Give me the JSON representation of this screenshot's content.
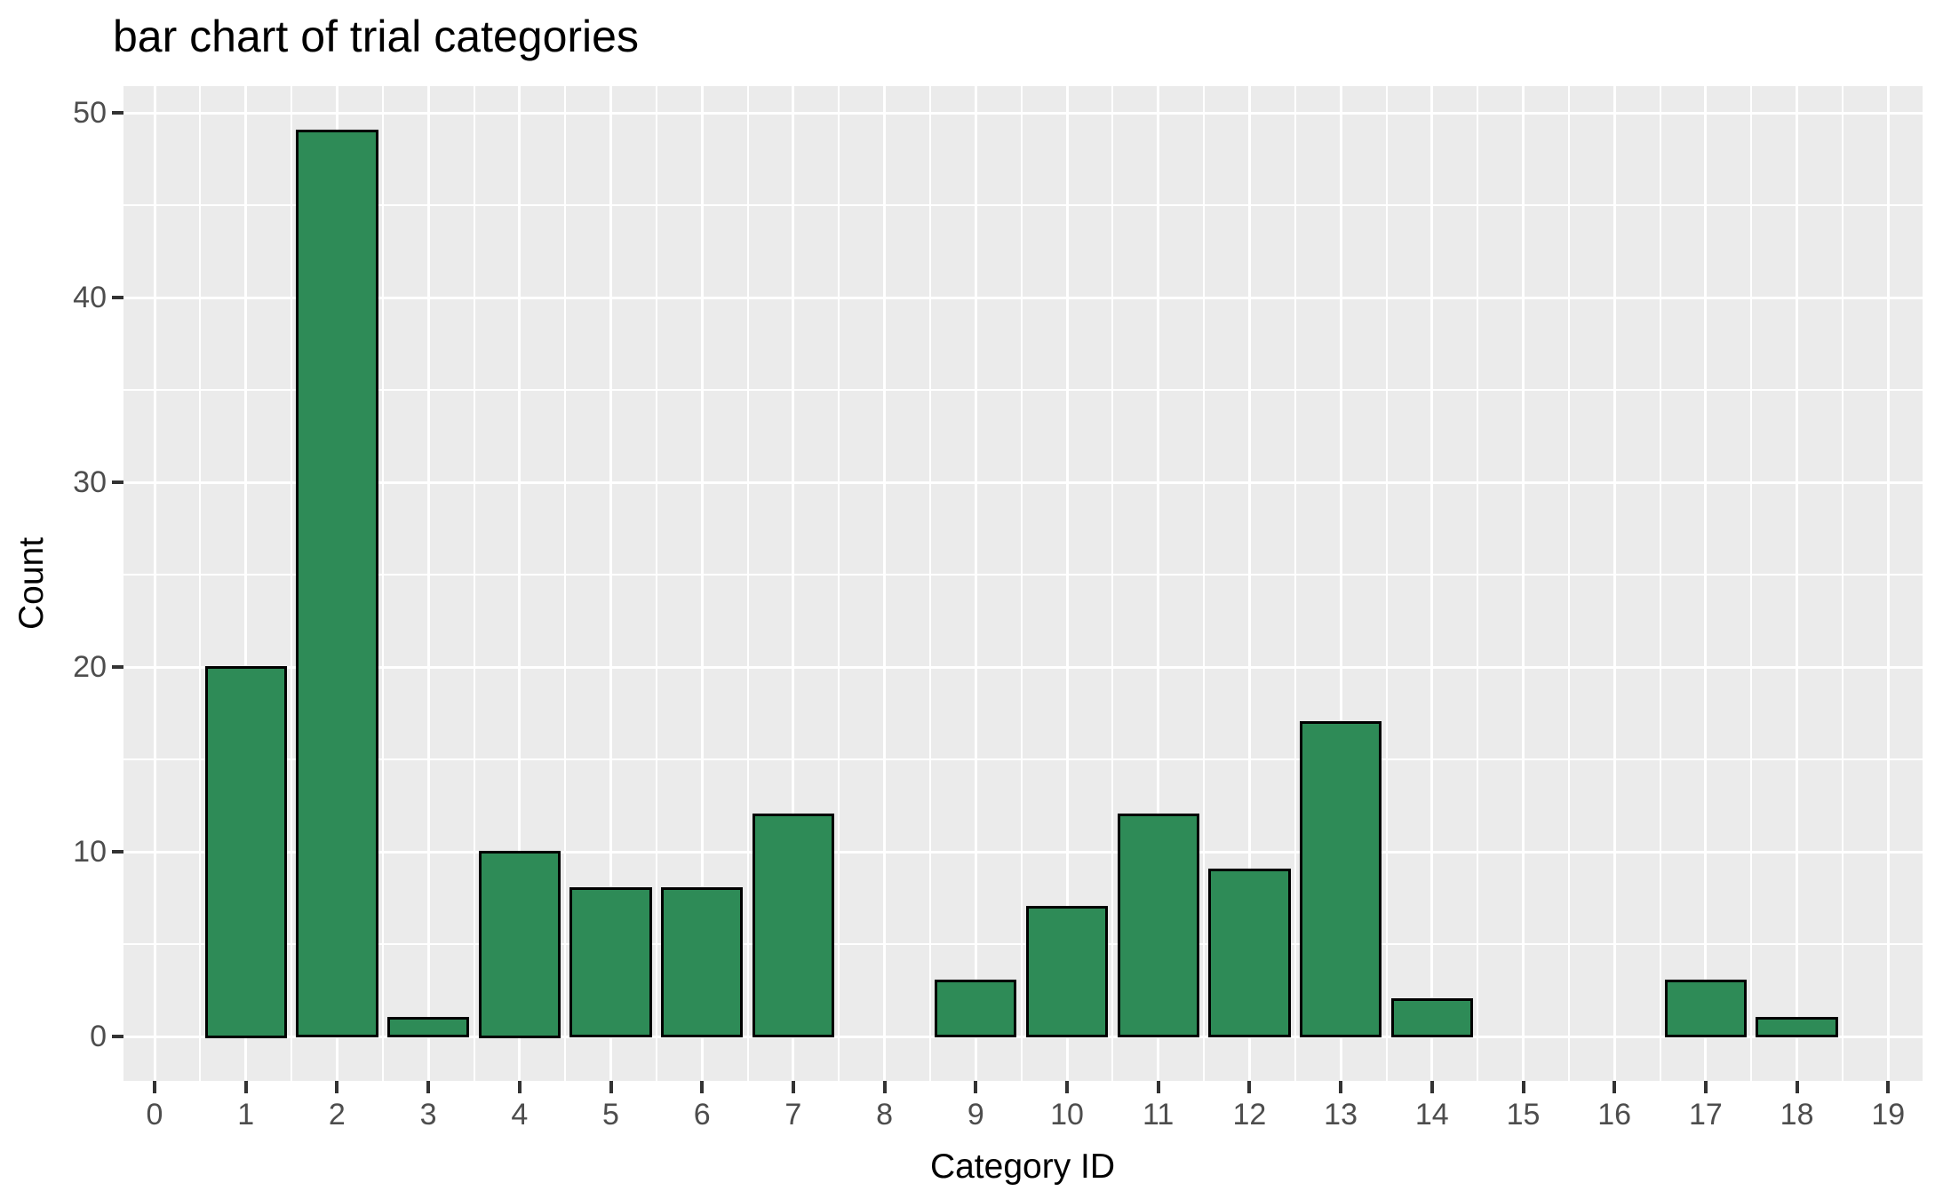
{
  "title": "bar chart of trial categories",
  "chart_data": {
    "type": "bar",
    "title": "bar chart of trial categories",
    "xlabel": "Category ID",
    "ylabel": "Count",
    "x": [
      1,
      2,
      3,
      4,
      5,
      6,
      7,
      9,
      10,
      11,
      12,
      13,
      14,
      17,
      18
    ],
    "values": [
      20,
      49,
      1,
      10,
      8,
      8,
      12,
      3,
      7,
      12,
      9,
      17,
      2,
      3,
      1
    ],
    "x_ticks": [
      0,
      1,
      2,
      3,
      4,
      5,
      6,
      7,
      8,
      9,
      10,
      11,
      12,
      13,
      14,
      15,
      16,
      17,
      18,
      19
    ],
    "y_ticks": [
      0,
      10,
      20,
      30,
      40,
      50
    ],
    "y_minor_ticks": [
      5,
      15,
      25,
      35,
      45
    ],
    "xlim": [
      -0.34,
      19.38
    ],
    "ylim": [
      -2.4,
      51.4
    ],
    "bar_width": 0.9,
    "grid": "white major and minor gridlines on grey panel",
    "legend": "none"
  },
  "colors": {
    "bar_fill": "#2E8B57",
    "bar_stroke": "#000000",
    "panel_background": "#EBEBEB",
    "gridline": "#FFFFFF",
    "tick_label": "#4D4D4D",
    "tick_mark": "#333333",
    "title_text": "#000000",
    "axis_title_text": "#000000",
    "figure_background": "#FFFFFF"
  }
}
